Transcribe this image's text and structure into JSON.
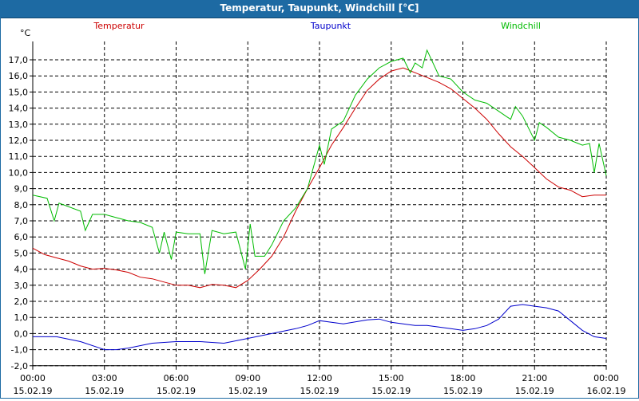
{
  "window": {
    "title": "Temperatur, Taupunkt, Windchill [°C]"
  },
  "chart_data": {
    "type": "line",
    "title": "Temperatur, Taupunkt, Windchill [°C]",
    "ylabel": "°C",
    "ylim": [
      -2.0,
      17.8
    ],
    "yticks": [
      "17,0",
      "16,0",
      "15,0",
      "14,0",
      "13,0",
      "12,0",
      "11,0",
      "10,0",
      "9,0",
      "8,0",
      "7,0",
      "6,0",
      "5,0",
      "4,0",
      "3,0",
      "2,0",
      "1,0",
      "0,0",
      "-1,0",
      "-2,0"
    ],
    "xlim": [
      0,
      24
    ],
    "xticks": [
      {
        "x": 0,
        "time": "00:00",
        "date": "15.02.19"
      },
      {
        "x": 3,
        "time": "03:00",
        "date": "15.02.19"
      },
      {
        "x": 6,
        "time": "06:00",
        "date": "15.02.19"
      },
      {
        "x": 9,
        "time": "09:00",
        "date": "15.02.19"
      },
      {
        "x": 12,
        "time": "12:00",
        "date": "15.02.19"
      },
      {
        "x": 15,
        "time": "15:00",
        "date": "15.02.19"
      },
      {
        "x": 18,
        "time": "18:00",
        "date": "15.02.19"
      },
      {
        "x": 21,
        "time": "21:00",
        "date": "15.02.19"
      },
      {
        "x": 24,
        "time": "00:00",
        "date": "16.02.19"
      }
    ],
    "grid": true,
    "series": [
      {
        "name": "Temperatur",
        "color": "#cc0000",
        "points": [
          [
            0,
            5.3
          ],
          [
            0.5,
            4.9
          ],
          [
            1,
            4.7
          ],
          [
            1.5,
            4.5
          ],
          [
            2,
            4.2
          ],
          [
            2.5,
            4.0
          ],
          [
            3,
            4.05
          ],
          [
            3.5,
            3.95
          ],
          [
            4,
            3.8
          ],
          [
            4.5,
            3.5
          ],
          [
            5,
            3.4
          ],
          [
            5.5,
            3.2
          ],
          [
            6,
            3.0
          ],
          [
            6.5,
            3.0
          ],
          [
            7,
            2.85
          ],
          [
            7.5,
            3.05
          ],
          [
            8,
            3.0
          ],
          [
            8.5,
            2.85
          ],
          [
            9,
            3.3
          ],
          [
            9.5,
            4.0
          ],
          [
            10,
            4.8
          ],
          [
            10.5,
            6.0
          ],
          [
            11,
            7.6
          ],
          [
            11.5,
            9.0
          ],
          [
            12,
            10.3
          ],
          [
            12.5,
            11.7
          ],
          [
            13,
            12.8
          ],
          [
            13.5,
            14.0
          ],
          [
            14,
            15.1
          ],
          [
            14.5,
            15.8
          ],
          [
            15,
            16.3
          ],
          [
            15.5,
            16.5
          ],
          [
            16,
            16.2
          ],
          [
            16.5,
            15.9
          ],
          [
            17,
            15.6
          ],
          [
            17.5,
            15.2
          ],
          [
            18,
            14.6
          ],
          [
            18.5,
            14.0
          ],
          [
            19,
            13.3
          ],
          [
            19.5,
            12.4
          ],
          [
            20,
            11.6
          ],
          [
            20.5,
            11.0
          ],
          [
            21,
            10.3
          ],
          [
            21.5,
            9.6
          ],
          [
            22,
            9.1
          ],
          [
            22.5,
            8.9
          ],
          [
            23,
            8.5
          ],
          [
            23.5,
            8.6
          ],
          [
            24,
            8.6
          ]
        ]
      },
      {
        "name": "Taupunkt",
        "color": "#0000cc",
        "points": [
          [
            0,
            -0.2
          ],
          [
            1,
            -0.2
          ],
          [
            2,
            -0.5
          ],
          [
            3,
            -1.0
          ],
          [
            3.5,
            -1.0
          ],
          [
            4,
            -0.9
          ],
          [
            5,
            -0.6
          ],
          [
            6,
            -0.5
          ],
          [
            7,
            -0.5
          ],
          [
            8,
            -0.6
          ],
          [
            9,
            -0.3
          ],
          [
            10,
            0.0
          ],
          [
            11,
            0.3
          ],
          [
            11.5,
            0.5
          ],
          [
            12,
            0.8
          ],
          [
            12.5,
            0.7
          ],
          [
            13,
            0.6
          ],
          [
            14,
            0.85
          ],
          [
            14.5,
            0.9
          ],
          [
            15,
            0.7
          ],
          [
            15.5,
            0.6
          ],
          [
            16,
            0.5
          ],
          [
            16.5,
            0.5
          ],
          [
            17,
            0.4
          ],
          [
            17.5,
            0.3
          ],
          [
            18,
            0.2
          ],
          [
            18.5,
            0.3
          ],
          [
            19,
            0.5
          ],
          [
            19.5,
            0.9
          ],
          [
            20,
            1.7
          ],
          [
            20.5,
            1.8
          ],
          [
            21,
            1.7
          ],
          [
            21.5,
            1.6
          ],
          [
            22,
            1.4
          ],
          [
            22.5,
            0.8
          ],
          [
            23,
            0.2
          ],
          [
            23.5,
            -0.2
          ],
          [
            24,
            -0.3
          ]
        ]
      },
      {
        "name": "Windchill",
        "color": "#00bb00",
        "points": [
          [
            0,
            8.6
          ],
          [
            0.6,
            8.4
          ],
          [
            0.9,
            7.0
          ],
          [
            1.1,
            8.1
          ],
          [
            2,
            7.6
          ],
          [
            2.2,
            6.4
          ],
          [
            2.5,
            7.4
          ],
          [
            3,
            7.4
          ],
          [
            3.5,
            7.2
          ],
          [
            4,
            7.0
          ],
          [
            4.5,
            6.9
          ],
          [
            5,
            6.6
          ],
          [
            5.3,
            5.0
          ],
          [
            5.5,
            6.3
          ],
          [
            5.8,
            4.6
          ],
          [
            6,
            6.3
          ],
          [
            6.5,
            6.2
          ],
          [
            7,
            6.2
          ],
          [
            7.2,
            3.7
          ],
          [
            7.5,
            6.4
          ],
          [
            8,
            6.2
          ],
          [
            8.5,
            6.3
          ],
          [
            8.9,
            4.0
          ],
          [
            9.1,
            6.8
          ],
          [
            9.3,
            4.8
          ],
          [
            9.7,
            4.8
          ],
          [
            10,
            5.5
          ],
          [
            10.5,
            7.0
          ],
          [
            11,
            7.8
          ],
          [
            11.5,
            9.0
          ],
          [
            12,
            11.7
          ],
          [
            12.2,
            10.5
          ],
          [
            12.5,
            12.7
          ],
          [
            13,
            13.2
          ],
          [
            13.5,
            14.8
          ],
          [
            14,
            15.8
          ],
          [
            14.5,
            16.5
          ],
          [
            15,
            16.9
          ],
          [
            15.5,
            17.1
          ],
          [
            15.8,
            16.2
          ],
          [
            16,
            16.8
          ],
          [
            16.3,
            16.5
          ],
          [
            16.5,
            17.6
          ],
          [
            17,
            16.0
          ],
          [
            17.5,
            15.8
          ],
          [
            18,
            15.0
          ],
          [
            18.5,
            14.5
          ],
          [
            19,
            14.3
          ],
          [
            19.5,
            13.8
          ],
          [
            20,
            13.3
          ],
          [
            20.2,
            14.1
          ],
          [
            20.5,
            13.5
          ],
          [
            21,
            12.0
          ],
          [
            21.2,
            13.1
          ],
          [
            21.5,
            12.8
          ],
          [
            22,
            12.2
          ],
          [
            22.5,
            12.0
          ],
          [
            23,
            11.7
          ],
          [
            23.3,
            11.8
          ],
          [
            23.5,
            10.0
          ],
          [
            23.7,
            11.8
          ],
          [
            24,
            9.8
          ]
        ]
      }
    ]
  }
}
